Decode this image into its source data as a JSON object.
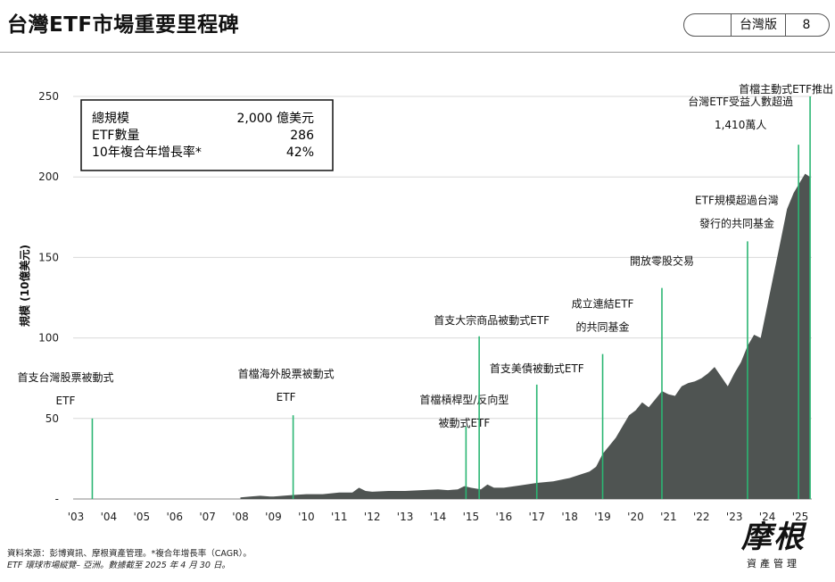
{
  "header": {
    "title": "台灣ETF市場重要里程碑",
    "region": "台灣版",
    "page": "8"
  },
  "summary": {
    "rows": [
      {
        "label": "總規模",
        "value": "2,000 億美元"
      },
      {
        "label": "ETF數量",
        "value": "286"
      },
      {
        "label": "10年複合年增長率*",
        "value": "42%"
      }
    ]
  },
  "chart_data": {
    "type": "area",
    "ylabel": "規模 (10億美元)",
    "ylim": [
      0,
      250
    ],
    "y_ticks": [
      {
        "value": 0,
        "label": "-"
      },
      {
        "value": 50,
        "label": "50"
      },
      {
        "value": 100,
        "label": "100"
      },
      {
        "value": 150,
        "label": "150"
      },
      {
        "value": 200,
        "label": "200"
      },
      {
        "value": 250,
        "label": "250"
      }
    ],
    "xlim": [
      2003,
      2025.5
    ],
    "x_ticks": [
      {
        "value": 2003,
        "label": "'03"
      },
      {
        "value": 2004,
        "label": "'04"
      },
      {
        "value": 2005,
        "label": "'05"
      },
      {
        "value": 2006,
        "label": "'06"
      },
      {
        "value": 2007,
        "label": "'07"
      },
      {
        "value": 2008,
        "label": "'08"
      },
      {
        "value": 2009,
        "label": "'09"
      },
      {
        "value": 2010,
        "label": "'10"
      },
      {
        "value": 2011,
        "label": "'11"
      },
      {
        "value": 2012,
        "label": "'12"
      },
      {
        "value": 2013,
        "label": "'13"
      },
      {
        "value": 2014,
        "label": "'14"
      },
      {
        "value": 2015,
        "label": "'15"
      },
      {
        "value": 2016,
        "label": "'16"
      },
      {
        "value": 2017,
        "label": "'17"
      },
      {
        "value": 2018,
        "label": "'18"
      },
      {
        "value": 2019,
        "label": "'19"
      },
      {
        "value": 2020,
        "label": "'20"
      },
      {
        "value": 2021,
        "label": "'21"
      },
      {
        "value": 2022,
        "label": "'22"
      },
      {
        "value": 2023,
        "label": "'23"
      },
      {
        "value": 2024,
        "label": "'24"
      },
      {
        "value": 2025,
        "label": "'25"
      }
    ],
    "grid": true,
    "series": [
      {
        "x": [
          2008.0,
          2008.3,
          2008.6,
          2008.9,
          2009.0,
          2009.3,
          2009.6,
          2010.0,
          2010.5,
          2011.0,
          2011.4,
          2011.6,
          2011.8,
          2012.0,
          2012.5,
          2013.0,
          2013.5,
          2014.0,
          2014.3,
          2014.6,
          2014.8,
          2015.0,
          2015.3,
          2015.5,
          2015.7,
          2016.0,
          2016.5,
          2017.0,
          2017.5,
          2018.0,
          2018.3,
          2018.6,
          2018.8,
          2019.0,
          2019.2,
          2019.4,
          2019.6,
          2019.8,
          2020.0,
          2020.2,
          2020.4,
          2020.6,
          2020.8,
          2021.0,
          2021.2,
          2021.4,
          2021.6,
          2021.8,
          2022.0,
          2022.2,
          2022.4,
          2022.6,
          2022.8,
          2023.0,
          2023.2,
          2023.4,
          2023.6,
          2023.8,
          2024.0,
          2024.2,
          2024.4,
          2024.6,
          2024.8,
          2025.0,
          2025.15,
          2025.3
        ],
        "values": [
          1,
          1.5,
          2,
          1.5,
          1.5,
          2,
          2.5,
          3,
          3,
          4,
          4,
          7,
          5,
          4.5,
          5,
          5,
          5.5,
          6,
          5.5,
          6,
          8,
          7,
          6,
          9,
          7,
          7,
          8.5,
          10,
          11,
          13,
          15,
          17,
          20,
          28,
          33,
          38,
          45,
          52,
          55,
          60,
          57,
          62,
          67,
          65,
          64,
          70,
          72,
          73,
          75,
          78,
          82,
          76,
          70,
          78,
          85,
          95,
          102,
          100,
          120,
          140,
          160,
          180,
          190,
          197,
          202,
          200
        ]
      }
    ],
    "milestones": [
      {
        "x": 2003.5,
        "y": 50,
        "label_lines": [
          "首支台灣股票被動式",
          "ETF"
        ]
      },
      {
        "x": 2009.6,
        "y": 52,
        "label_lines": [
          "首檔海外股票被動式",
          "ETF"
        ]
      },
      {
        "x": 2014.85,
        "y": 45,
        "label_lines": [
          "首檔槓桿型/反向型",
          "被動式ETF"
        ]
      },
      {
        "x": 2015.25,
        "y": 101,
        "label_lines": [
          "首支大宗商品被動式ETF"
        ]
      },
      {
        "x": 2017.0,
        "y": 71,
        "label_lines": [
          "首支美債被動式ETF"
        ]
      },
      {
        "x": 2019.0,
        "y": 90,
        "label_lines": [
          "成立連結ETF",
          "的共同基金"
        ]
      },
      {
        "x": 2020.8,
        "y": 131,
        "label_lines": [
          "開放零股交易"
        ]
      },
      {
        "x": 2023.4,
        "y": 160,
        "label_lines": [
          "ETF規模超過台灣",
          "發行的共同基金"
        ]
      },
      {
        "x": 2024.95,
        "y": 220,
        "label_lines": [
          "台灣ETF受益人數超過",
          "1,410萬人"
        ]
      },
      {
        "x": 2025.3,
        "y": 250,
        "label_lines": [
          "首檔主動式ETF推出"
        ]
      }
    ]
  },
  "footer": {
    "line1": "資料來源：彭博資訊、摩根資產管理。*複合年增長率（CAGR）。",
    "line2": "ETF 環球市場縱覽– 亞洲。數據截至 2025 年 4 月 30 日。"
  },
  "logo": {
    "mark": "摩根",
    "sub": "資產管理"
  }
}
